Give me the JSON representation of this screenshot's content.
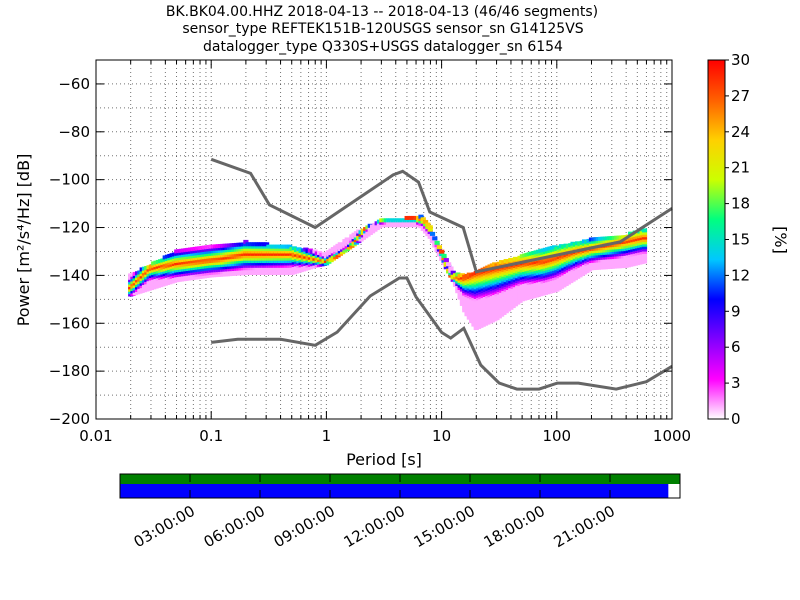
{
  "header": {
    "line1": "BK.BK04.00.HHZ   2018-04-13 -- 2018-04-13  (46/46 segments)",
    "line2": "sensor_type REFTEK151B-120USGS sensor_sn G14125VS",
    "line3": "datalogger_type Q330S+USGS datalogger_sn 6154"
  },
  "chart_data": [
    {
      "type": "heatmap",
      "title": "",
      "xlabel": "Period [s]",
      "ylabel": "Power [m²/s⁴/Hz] [dB]",
      "xscale": "log",
      "xlim": [
        0.01,
        1000
      ],
      "ylim": [
        -200,
        -50
      ],
      "xticks": [
        "0.01",
        "0.1",
        "1",
        "10",
        "100",
        "1000"
      ],
      "yticks": [
        "−200",
        "−180",
        "−160",
        "−140",
        "−120",
        "−100",
        "−80",
        "−60"
      ],
      "grid": "dotted at log-decade subdivisions",
      "colorbar": {
        "label": "[%]",
        "range": [
          0,
          30
        ],
        "ticks": [
          "0",
          "3",
          "6",
          "9",
          "12",
          "15",
          "18",
          "21",
          "24",
          "27",
          "30"
        ],
        "colormap": [
          "#ffffff",
          "#ff00ff",
          "#8000ff",
          "#0000ff",
          "#00c8ff",
          "#00ff80",
          "#ccff00",
          "#ffd000",
          "#ff6000",
          "#ff0000"
        ]
      },
      "ppsd_mode": {
        "period": [
          0.02,
          0.03,
          0.05,
          0.08,
          0.12,
          0.2,
          0.3,
          0.5,
          0.8,
          1.0,
          1.5,
          2.0,
          2.5,
          3.5,
          5.0,
          6.0,
          7.0,
          8.5,
          10,
          12,
          14,
          16,
          18,
          20,
          30,
          50,
          80,
          150,
          300,
          600
        ],
        "power": [
          -145,
          -137,
          -135,
          -134,
          -133,
          -131,
          -131,
          -131,
          -133,
          -134,
          -130,
          -123,
          -117,
          -116,
          -116,
          -116,
          -117,
          -122,
          -130,
          -140,
          -141,
          -141,
          -140,
          -139,
          -137,
          -135,
          -134,
          -130,
          -127,
          -124
        ]
      },
      "ppsd_spread": {
        "period": [
          0.02,
          0.05,
          0.1,
          0.2,
          0.5,
          0.8,
          1.0,
          2.0,
          3.0,
          5.0,
          6.5,
          8.0,
          10,
          13,
          16,
          20,
          30,
          50,
          100,
          200,
          400,
          600
        ],
        "upper": [
          -140,
          -130,
          -128,
          -126,
          -128,
          -130,
          -131,
          -121,
          -117,
          -116,
          -115,
          -120,
          -130,
          -139,
          -140,
          -139,
          -135,
          -132,
          -128,
          -125,
          -123,
          -121
        ],
        "lower": [
          -148,
          -142,
          -140,
          -139,
          -139,
          -136,
          -135,
          -125,
          -119,
          -119,
          -119,
          -124,
          -133,
          -143,
          -155,
          -162,
          -158,
          -150,
          -146,
          -137,
          -136,
          -134
        ]
      },
      "noise_models": [
        {
          "period": [
            0.1,
            0.22,
            0.32,
            0.8,
            3.8,
            4.6,
            6.3,
            7.9,
            15.4,
            20.0,
            354.8,
            1000
          ],
          "power": [
            -91.5,
            -97.4,
            -110.5,
            -120.0,
            -98.0,
            -96.5,
            -101.0,
            -113.5,
            -120.0,
            -138.5,
            -126.0,
            -112.0
          ]
        },
        {
          "period": [
            0.1,
            0.17,
            0.4,
            0.8,
            1.24,
            2.4,
            4.3,
            5.0,
            6.0,
            10.0,
            12.0,
            15.6,
            21.9,
            31.6,
            45.0,
            70.0,
            101.0,
            154.0,
            328.0,
            600.0,
            1000.0
          ],
          "power": [
            -168.0,
            -166.7,
            -166.7,
            -169.2,
            -163.7,
            -148.6,
            -141.1,
            -141.1,
            -149.0,
            -163.8,
            -166.2,
            -162.1,
            -177.5,
            -185.0,
            -187.5,
            -187.5,
            -185.0,
            -185.0,
            -187.5,
            -184.4,
            -178.0
          ]
        }
      ]
    },
    {
      "type": "bar",
      "title": "",
      "xlabel": "",
      "ylabel": "",
      "xlim": [
        "00:00:00",
        "24:00:00"
      ],
      "xticks": [
        "03:00:00",
        "06:00:00",
        "09:00:00",
        "12:00:00",
        "15:00:00",
        "18:00:00",
        "21:00:00"
      ],
      "data_available": {
        "start": 0,
        "end": 24,
        "unit": "hours",
        "color": "#008000"
      },
      "psd_coverage": {
        "start": 0,
        "end": 23.5,
        "unit": "hours",
        "color": "#0000ff"
      }
    }
  ],
  "colors": {
    "noise_model": "#666666",
    "frame": "#000000",
    "grid": "#000000"
  }
}
